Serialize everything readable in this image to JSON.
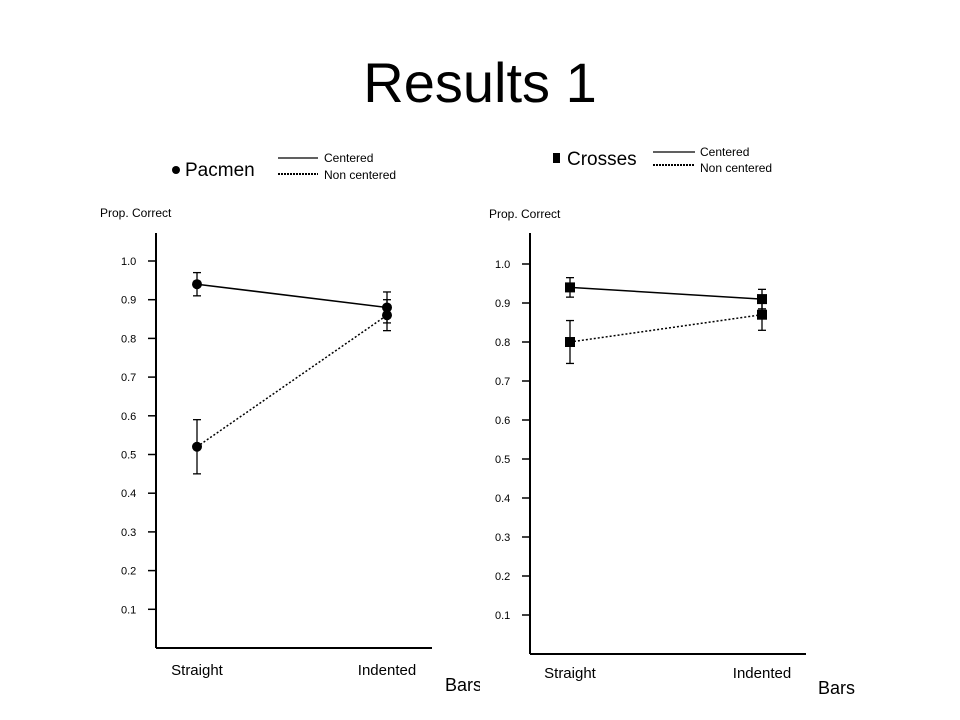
{
  "slide": {
    "title": "Results 1"
  },
  "chart_data": [
    {
      "type": "line",
      "legend_series": "Pacmen",
      "marker": "circle",
      "ylabel": "Prop. Correct",
      "xlabel": "Bars",
      "categories": [
        "Straight",
        "Indented"
      ],
      "yticks": [
        "0.1",
        "0.2",
        "0.3",
        "0.4",
        "0.5",
        "0.6",
        "0.7",
        "0.8",
        "0.9",
        "1.0"
      ],
      "ylim": [
        0,
        1.05
      ],
      "series": [
        {
          "name": "Centered",
          "style": "solid",
          "values": [
            0.94,
            0.88
          ],
          "err": [
            0.03,
            0.04
          ]
        },
        {
          "name": "Non centered",
          "style": "dotted",
          "values": [
            0.52,
            0.86
          ],
          "err": [
            0.07,
            0.04
          ]
        }
      ]
    },
    {
      "type": "line",
      "legend_series": "Crosses",
      "marker": "square",
      "ylabel": "Prop. Correct",
      "xlabel": "Bars",
      "categories": [
        "Straight",
        "Indented"
      ],
      "yticks": [
        "0.1",
        "0.2",
        "0.3",
        "0.4",
        "0.5",
        "0.6",
        "0.7",
        "0.8",
        "0.9",
        "1.0"
      ],
      "ylim": [
        0,
        1.05
      ],
      "series": [
        {
          "name": "Centered",
          "style": "solid",
          "values": [
            0.94,
            0.91
          ],
          "err": [
            0.025,
            0.025
          ]
        },
        {
          "name": "Non centered",
          "style": "dotted",
          "values": [
            0.8,
            0.87
          ],
          "err": [
            0.055,
            0.04
          ]
        }
      ]
    }
  ]
}
